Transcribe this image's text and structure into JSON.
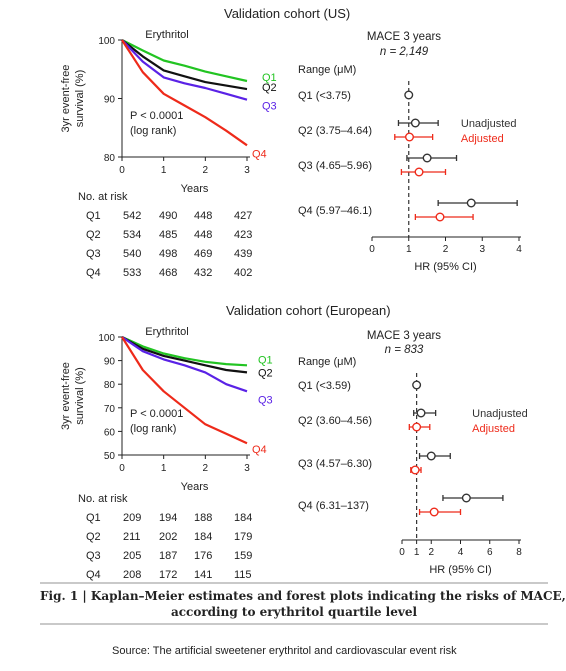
{
  "figure": {
    "caption_line1": "Fig. 1 | Kaplan–Meier estimates and forest plots indicating the risks of MACE,",
    "caption_line2": "according to erythritol quartile level",
    "source": "Source:  The artificial sweetener erythritol and cardiovascular event risk"
  },
  "colors": {
    "Q1": "#22c422",
    "Q2": "#111111",
    "Q3": "#5a22e6",
    "Q4": "#ee2a1a",
    "unadjusted": "#333333",
    "adjusted": "#ee2a1a"
  },
  "panels": [
    {
      "cohort_title": "Validation cohort (US)",
      "forest_heading": "MACE 3 years",
      "forest_n": "n = 2,149",
      "km": {
        "title": "Erythritol",
        "ylabel_line1": "3yr event-free",
        "ylabel_line2": "survival (%)",
        "xlabel": "Years",
        "stat_line1": "P < 0.0001",
        "stat_line2": "(log rank)",
        "at_risk_header": "No. at risk",
        "xlim": [
          0,
          3
        ],
        "ylim": [
          80,
          100
        ],
        "yticks": [
          80,
          90,
          100
        ],
        "xticks": [
          0,
          1,
          2,
          3
        ],
        "chart_data": {
          "type": "line",
          "title": "Erythritol",
          "xlabel": "Years",
          "ylabel": "3yr event-free survival (%)",
          "series": [
            {
              "name": "Q1",
              "x": [
                0,
                0.5,
                1,
                1.5,
                2,
                2.5,
                3
              ],
              "values": [
                100,
                98.2,
                96.5,
                95.6,
                94.6,
                93.8,
                93.0
              ]
            },
            {
              "name": "Q2",
              "x": [
                0,
                0.5,
                1,
                1.5,
                2,
                2.5,
                3
              ],
              "values": [
                100,
                97.2,
                94.8,
                93.8,
                92.8,
                92.2,
                91.6
              ]
            },
            {
              "name": "Q3",
              "x": [
                0,
                0.5,
                1,
                1.5,
                2,
                2.5,
                3
              ],
              "values": [
                100,
                96.3,
                93.6,
                92.6,
                91.8,
                90.8,
                89.8
              ]
            },
            {
              "name": "Q4",
              "x": [
                0,
                0.5,
                1,
                1.5,
                2,
                2.5,
                3
              ],
              "values": [
                100,
                94.5,
                90.8,
                88.8,
                86.8,
                84.5,
                82.0
              ]
            }
          ]
        },
        "at_risk": [
          {
            "group": "Q1",
            "values": [
              "542",
              "490",
              "448",
              "427"
            ]
          },
          {
            "group": "Q2",
            "values": [
              "534",
              "485",
              "448",
              "423"
            ]
          },
          {
            "group": "Q3",
            "values": [
              "540",
              "498",
              "469",
              "439"
            ]
          },
          {
            "group": "Q4",
            "values": [
              "533",
              "468",
              "432",
              "402"
            ]
          }
        ]
      },
      "forest": {
        "range_header": "Range (μM)",
        "xlabel": "HR (95% CI)",
        "xlim": [
          0,
          4
        ],
        "xticks": [
          0,
          1,
          2,
          3,
          4
        ],
        "legend_unadjusted": "Unadjusted",
        "legend_adjusted": "Adjusted",
        "chart_data": {
          "type": "scatter",
          "xlabel": "HR (95% CI)",
          "rows": [
            {
              "label": "Q1 (<3.75)",
              "unadjusted": {
                "hr": 1.0,
                "lo": 1.0,
                "hi": 1.0
              },
              "adjusted": null
            },
            {
              "label": "Q2 (3.75–4.64)",
              "unadjusted": {
                "hr": 1.18,
                "lo": 0.72,
                "hi": 1.8
              },
              "adjusted": {
                "hr": 1.02,
                "lo": 0.62,
                "hi": 1.65
              }
            },
            {
              "label": "Q3 (4.65–5.96)",
              "unadjusted": {
                "hr": 1.5,
                "lo": 0.95,
                "hi": 2.3
              },
              "adjusted": {
                "hr": 1.28,
                "lo": 0.8,
                "hi": 2.0
              }
            },
            {
              "label": "Q4 (5.97–46.1)",
              "unadjusted": {
                "hr": 2.7,
                "lo": 1.8,
                "hi": 3.95
              },
              "adjusted": {
                "hr": 1.85,
                "lo": 1.18,
                "hi": 2.75
              }
            }
          ]
        }
      }
    },
    {
      "cohort_title": "Validation cohort (European)",
      "forest_heading": "MACE 3 years",
      "forest_n": "n = 833",
      "km": {
        "title": "Erythritol",
        "ylabel_line1": "3yr event-free",
        "ylabel_line2": "survival (%)",
        "xlabel": "Years",
        "stat_line1": "P < 0.0001",
        "stat_line2": "(log rank)",
        "at_risk_header": "No. at risk",
        "xlim": [
          0,
          3
        ],
        "ylim": [
          50,
          100
        ],
        "yticks": [
          50,
          60,
          70,
          80,
          90,
          100
        ],
        "xticks": [
          0,
          1,
          2,
          3
        ],
        "chart_data": {
          "type": "line",
          "title": "Erythritol",
          "xlabel": "Years",
          "ylabel": "3yr event-free survival (%)",
          "series": [
            {
              "name": "Q1",
              "x": [
                0,
                0.5,
                1,
                1.5,
                2,
                2.5,
                3
              ],
              "values": [
                100,
                96,
                93,
                91,
                89.5,
                88.5,
                88
              ]
            },
            {
              "name": "Q2",
              "x": [
                0,
                0.5,
                1,
                1.5,
                2,
                2.5,
                3
              ],
              "values": [
                100,
                95,
                92,
                90,
                88,
                86,
                85
              ]
            },
            {
              "name": "Q3",
              "x": [
                0,
                0.5,
                1,
                1.5,
                2,
                2.5,
                3
              ],
              "values": [
                100,
                94,
                90.5,
                88,
                85,
                80,
                77
              ]
            },
            {
              "name": "Q4",
              "x": [
                0,
                0.5,
                1,
                1.5,
                2,
                2.5,
                3
              ],
              "values": [
                100,
                86,
                77,
                70,
                63,
                59,
                55
              ]
            }
          ]
        },
        "at_risk": [
          {
            "group": "Q1",
            "values": [
              "209",
              "194",
              "188",
              "184"
            ]
          },
          {
            "group": "Q2",
            "values": [
              "211",
              "202",
              "184",
              "179"
            ]
          },
          {
            "group": "Q3",
            "values": [
              "205",
              "187",
              "176",
              "159"
            ]
          },
          {
            "group": "Q4",
            "values": [
              "208",
              "172",
              "141",
              "115"
            ]
          }
        ]
      },
      "forest": {
        "range_header": "Range (μM)",
        "xlabel": "HR (95% CI)",
        "xlim": [
          0,
          8
        ],
        "xticks": [
          0,
          1,
          2,
          4,
          6,
          8
        ],
        "legend_unadjusted": "Unadjusted",
        "legend_adjusted": "Adjusted",
        "chart_data": {
          "type": "scatter",
          "xlabel": "HR (95% CI)",
          "rows": [
            {
              "label": "Q1 (<3.59)",
              "unadjusted": {
                "hr": 1.0,
                "lo": 1.0,
                "hi": 1.0
              },
              "adjusted": null
            },
            {
              "label": "Q2 (3.60–4.56)",
              "unadjusted": {
                "hr": 1.3,
                "lo": 0.8,
                "hi": 2.3
              },
              "adjusted": {
                "hr": 1.0,
                "lo": 0.5,
                "hi": 1.9
              }
            },
            {
              "label": "Q3 (4.57–6.30)",
              "unadjusted": {
                "hr": 2.0,
                "lo": 1.2,
                "hi": 3.3
              },
              "adjusted": {
                "hr": 0.9,
                "lo": 0.6,
                "hi": 1.3
              }
            },
            {
              "label": "Q4 (6.31–137)",
              "unadjusted": {
                "hr": 4.4,
                "lo": 2.8,
                "hi": 6.9
              },
              "adjusted": {
                "hr": 2.2,
                "lo": 1.2,
                "hi": 4.0
              }
            }
          ]
        }
      }
    }
  ]
}
